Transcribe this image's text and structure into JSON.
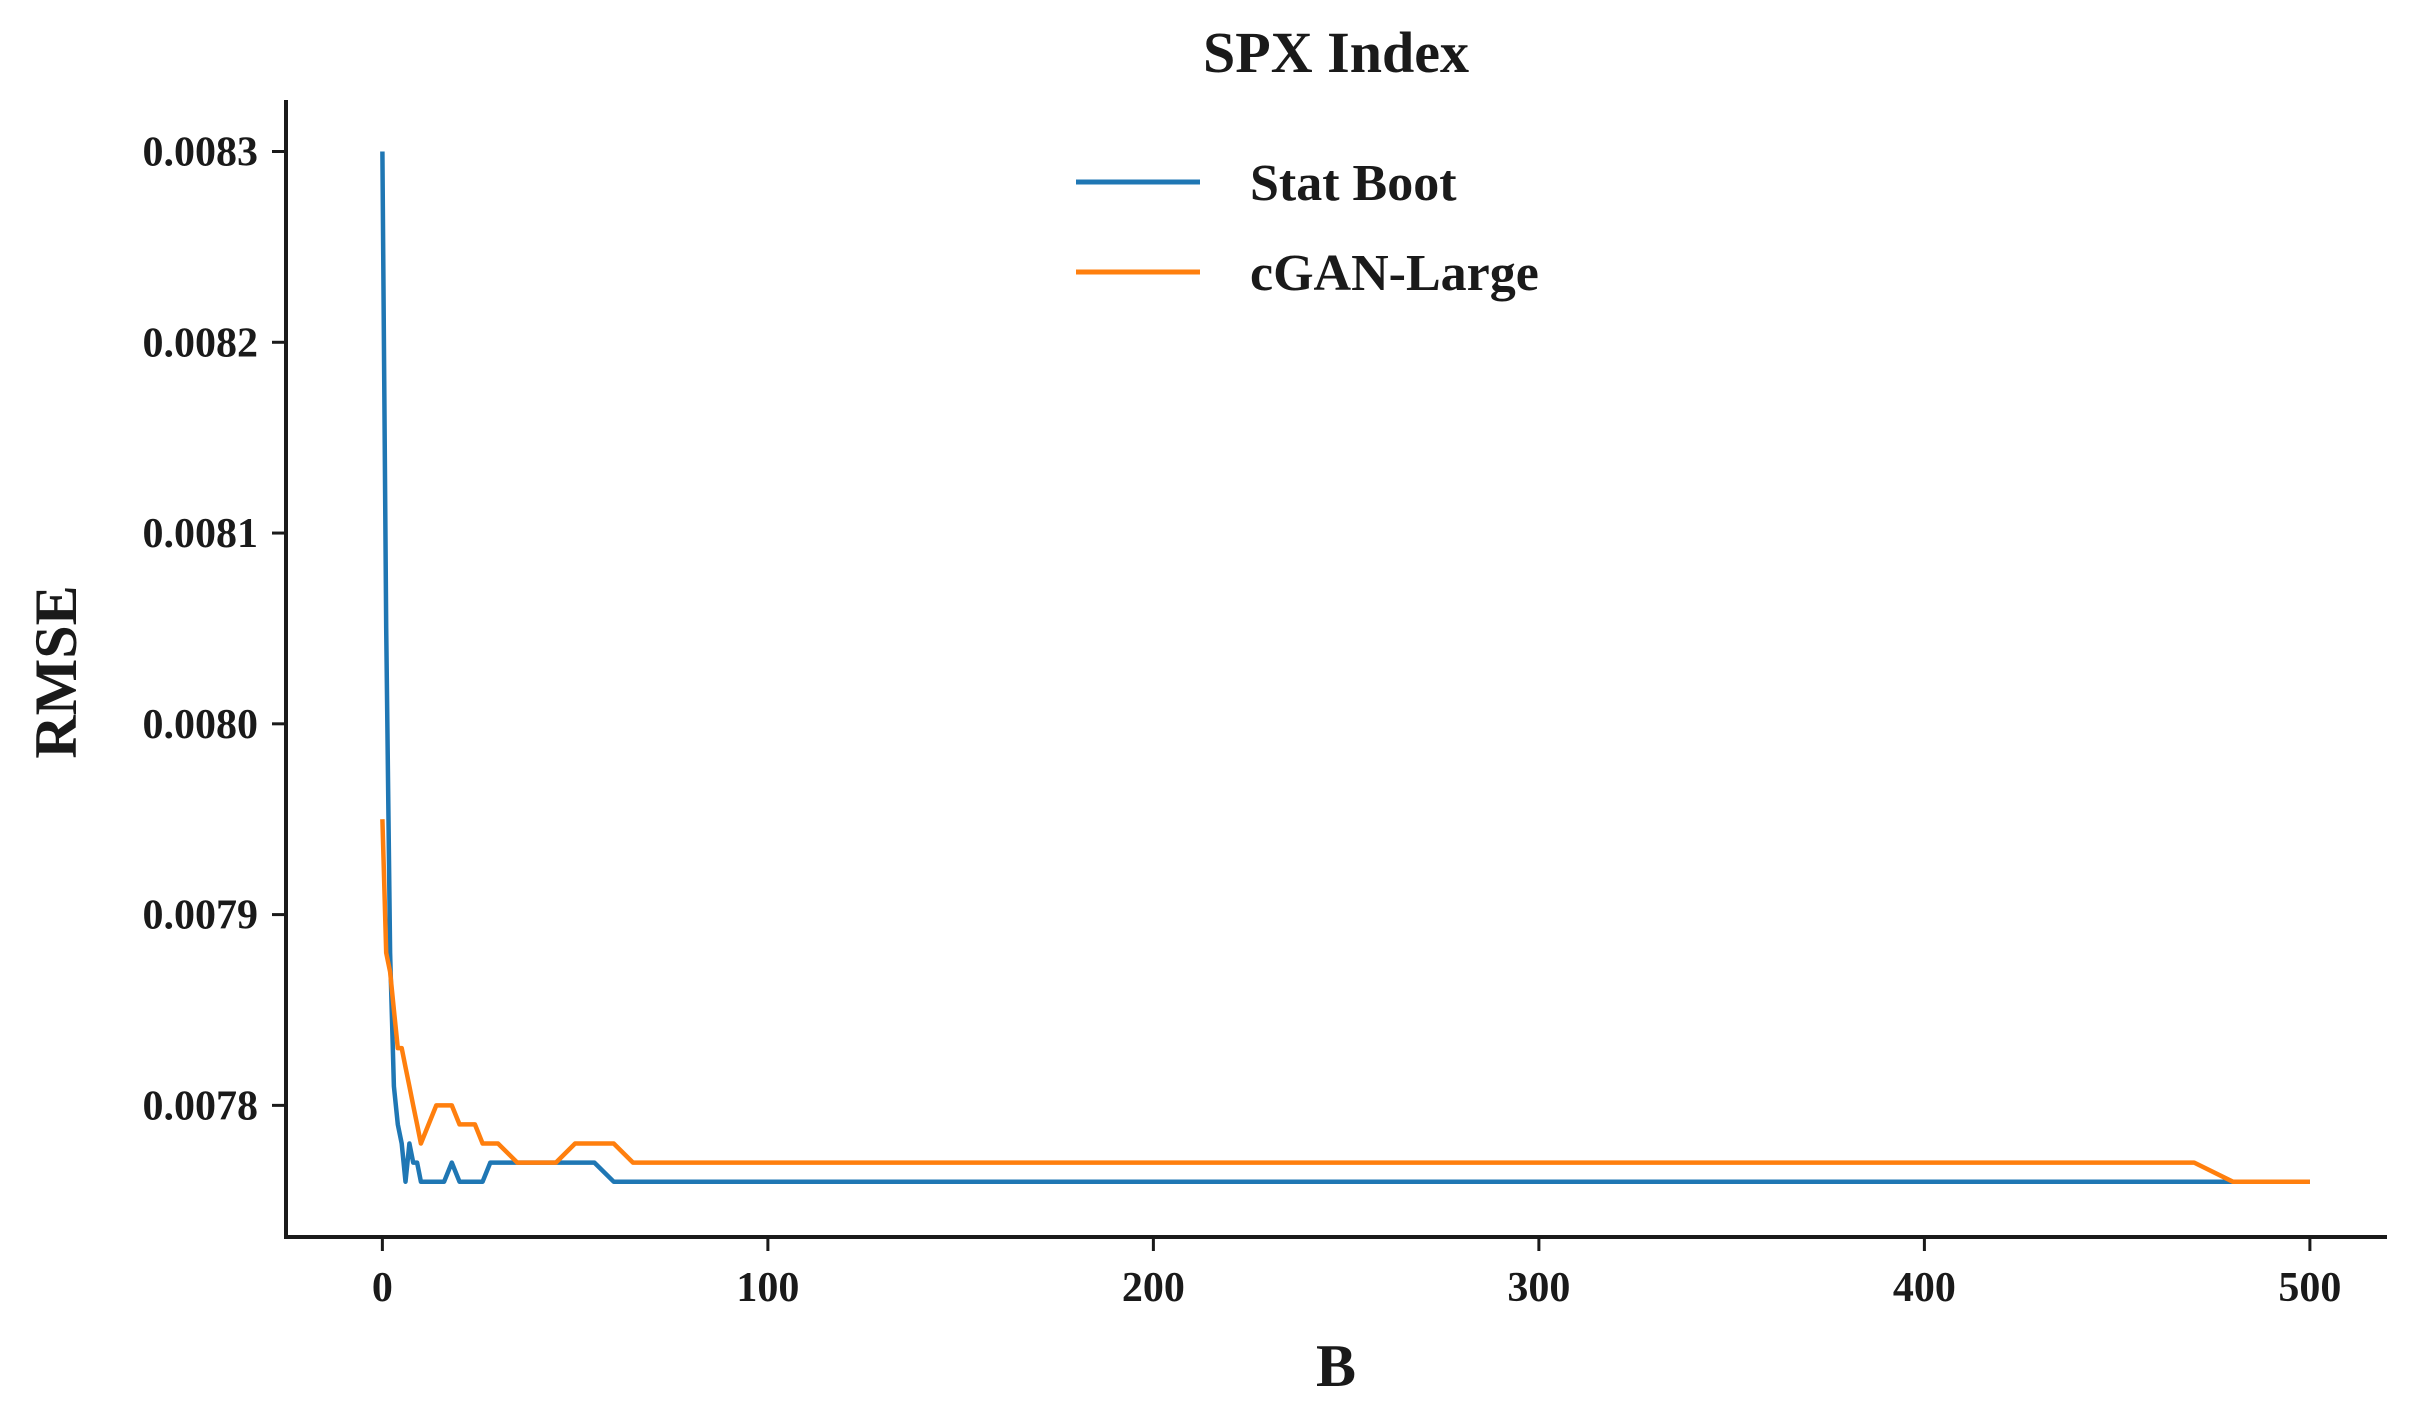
{
  "chart_data": {
    "type": "line",
    "title": "SPX Index",
    "xlabel": "B",
    "ylabel": "RMSE",
    "xlim": [
      -25,
      520
    ],
    "ylim": [
      0.007731,
      0.008327
    ],
    "xticks": [
      0,
      100,
      200,
      300,
      400,
      500
    ],
    "xtick_labels": [
      "0",
      "100",
      "200",
      "300",
      "400",
      "500"
    ],
    "yticks": [
      0.0078,
      0.0079,
      0.008,
      0.0081,
      0.0082,
      0.0083
    ],
    "ytick_labels": [
      "0.0078",
      "0.0079",
      "0.0080",
      "0.0081",
      "0.0082",
      "0.0083"
    ],
    "grid": false,
    "legend_position": "top-center",
    "series": [
      {
        "name": "Stat Boot",
        "color": "#1f77b4",
        "x": [
          0,
          1,
          2,
          3,
          4,
          5,
          6,
          7,
          8,
          9,
          10,
          12,
          14,
          16,
          18,
          20,
          22,
          24,
          26,
          28,
          30,
          35,
          40,
          45,
          50,
          55,
          60,
          65,
          70,
          75,
          80,
          90,
          100,
          110,
          120,
          130,
          140,
          150,
          160,
          170,
          180,
          190,
          200,
          210,
          220,
          230,
          240,
          250,
          260,
          270,
          280,
          290,
          300,
          310,
          320,
          330,
          340,
          350,
          360,
          370,
          380,
          390,
          400,
          410,
          420,
          430,
          440,
          450,
          460,
          470,
          480,
          490,
          500
        ],
        "y": [
          0.0083,
          0.00805,
          0.00788,
          0.00781,
          0.00779,
          0.00778,
          0.00776,
          0.00778,
          0.00777,
          0.00777,
          0.00776,
          0.00776,
          0.00776,
          0.00776,
          0.00777,
          0.00776,
          0.00776,
          0.00776,
          0.00776,
          0.00777,
          0.00777,
          0.00777,
          0.00777,
          0.00777,
          0.00777,
          0.00777,
          0.00776,
          0.00776,
          0.00776,
          0.00776,
          0.00776,
          0.00776,
          0.00776,
          0.00776,
          0.00776,
          0.00776,
          0.00776,
          0.00776,
          0.00776,
          0.00776,
          0.00776,
          0.00776,
          0.00776,
          0.00776,
          0.00776,
          0.00776,
          0.00776,
          0.00776,
          0.00776,
          0.00776,
          0.00776,
          0.00776,
          0.00776,
          0.00776,
          0.00776,
          0.00776,
          0.00776,
          0.00776,
          0.00776,
          0.00776,
          0.00776,
          0.00776,
          0.00776,
          0.00776,
          0.00776,
          0.00776,
          0.00776,
          0.00776,
          0.00776,
          0.00776,
          0.00776,
          0.00776,
          0.00776
        ]
      },
      {
        "name": "cGAN-Large",
        "color": "#ff7f0e",
        "x": [
          0,
          1,
          2,
          3,
          4,
          5,
          6,
          7,
          8,
          9,
          10,
          12,
          14,
          16,
          18,
          20,
          22,
          24,
          26,
          28,
          30,
          35,
          40,
          45,
          50,
          55,
          60,
          65,
          70,
          75,
          80,
          90,
          100,
          110,
          120,
          130,
          140,
          150,
          160,
          170,
          180,
          190,
          200,
          210,
          220,
          230,
          240,
          250,
          260,
          270,
          280,
          290,
          300,
          310,
          320,
          330,
          340,
          350,
          360,
          370,
          380,
          390,
          400,
          410,
          420,
          430,
          440,
          450,
          460,
          470,
          480,
          490,
          500
        ],
        "y": [
          0.00795,
          0.00788,
          0.00787,
          0.00785,
          0.00783,
          0.00783,
          0.00782,
          0.00781,
          0.0078,
          0.00779,
          0.00778,
          0.00779,
          0.0078,
          0.0078,
          0.0078,
          0.00779,
          0.00779,
          0.00779,
          0.00778,
          0.00778,
          0.00778,
          0.00777,
          0.00777,
          0.00777,
          0.00778,
          0.00778,
          0.00778,
          0.00777,
          0.00777,
          0.00777,
          0.00777,
          0.00777,
          0.00777,
          0.00777,
          0.00777,
          0.00777,
          0.00777,
          0.00777,
          0.00777,
          0.00777,
          0.00777,
          0.00777,
          0.00777,
          0.00777,
          0.00777,
          0.00777,
          0.00777,
          0.00777,
          0.00777,
          0.00777,
          0.00777,
          0.00777,
          0.00777,
          0.00777,
          0.00777,
          0.00777,
          0.00777,
          0.00777,
          0.00777,
          0.00777,
          0.00777,
          0.00777,
          0.00777,
          0.00777,
          0.00777,
          0.00777,
          0.00777,
          0.00777,
          0.00777,
          0.00777,
          0.00776,
          0.00776,
          0.00776
        ]
      }
    ]
  }
}
